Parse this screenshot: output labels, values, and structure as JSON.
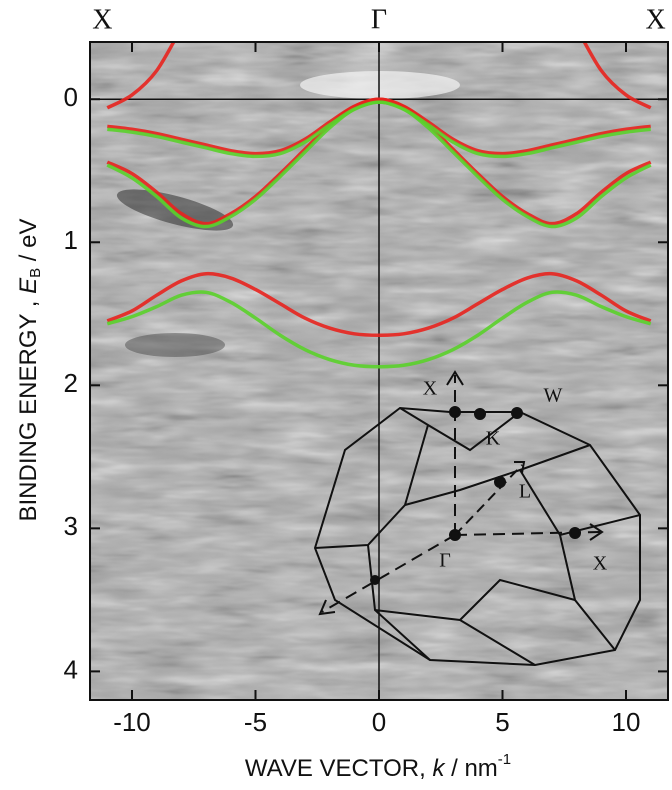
{
  "chart_data": {
    "type": "line",
    "x_label_parts": [
      "WAVE VECTOR, ",
      "k",
      " / nm",
      "-1"
    ],
    "y_label_parts": [
      "BINDING ENERGY , ",
      "E",
      "B",
      " / eV"
    ],
    "top_labels": [
      {
        "label": "X",
        "x": -11.2
      },
      {
        "label": "Γ",
        "x": 0
      },
      {
        "label": "X",
        "x": 11.2
      }
    ],
    "x": [
      -11,
      -10,
      -9,
      -8,
      -7,
      -6,
      -5,
      -4,
      -3,
      -2,
      -1,
      0,
      1,
      2,
      3,
      4,
      5,
      6,
      7,
      8,
      9,
      10,
      11
    ],
    "series": [
      {
        "color": "#e8231e",
        "values": [
          0.44,
          0.52,
          0.65,
          0.8,
          0.87,
          0.8,
          0.68,
          0.52,
          0.35,
          0.18,
          0.05,
          0.0,
          0.05,
          0.18,
          0.35,
          0.52,
          0.68,
          0.8,
          0.87,
          0.8,
          0.65,
          0.52,
          0.44
        ]
      },
      {
        "color": "#5ad12a",
        "values": [
          0.46,
          0.55,
          0.68,
          0.83,
          0.89,
          0.82,
          0.7,
          0.54,
          0.37,
          0.2,
          0.07,
          0.02,
          0.07,
          0.2,
          0.37,
          0.54,
          0.7,
          0.82,
          0.89,
          0.83,
          0.68,
          0.55,
          0.46
        ]
      },
      {
        "color": "#e8231e",
        "values": [
          0.19,
          0.21,
          0.24,
          0.28,
          0.32,
          0.36,
          0.38,
          0.36,
          0.28,
          0.16,
          0.05,
          0.0,
          0.05,
          0.16,
          0.28,
          0.36,
          0.38,
          0.36,
          0.32,
          0.28,
          0.24,
          0.21,
          0.19
        ]
      },
      {
        "color": "#5ad12a",
        "values": [
          0.21,
          0.23,
          0.26,
          0.3,
          0.34,
          0.38,
          0.4,
          0.38,
          0.3,
          0.18,
          0.07,
          0.02,
          0.07,
          0.18,
          0.3,
          0.38,
          0.4,
          0.38,
          0.34,
          0.3,
          0.26,
          0.23,
          0.21
        ]
      },
      {
        "color": "#e8231e",
        "values": [
          1.55,
          1.48,
          1.37,
          1.27,
          1.22,
          1.25,
          1.33,
          1.43,
          1.53,
          1.6,
          1.64,
          1.65,
          1.64,
          1.6,
          1.53,
          1.43,
          1.33,
          1.25,
          1.22,
          1.27,
          1.37,
          1.48,
          1.55
        ]
      },
      {
        "color": "#5ad12a",
        "values": [
          1.57,
          1.52,
          1.45,
          1.37,
          1.35,
          1.42,
          1.53,
          1.65,
          1.75,
          1.82,
          1.86,
          1.87,
          1.86,
          1.82,
          1.75,
          1.65,
          1.53,
          1.42,
          1.35,
          1.37,
          1.45,
          1.52,
          1.57
        ]
      },
      {
        "color": "#e8231e",
        "values": [
          0.06,
          -0.03,
          -0.2,
          -0.5,
          null,
          null,
          null,
          null,
          null,
          null,
          null,
          null,
          null,
          null,
          null,
          null,
          null,
          null,
          null,
          -0.5,
          -0.2,
          -0.03,
          0.06
        ]
      }
    ],
    "xlim": [
      -11.7,
      11.7
    ],
    "ylim": [
      -0.4,
      4.2
    ],
    "y_inverted": true,
    "xticks": [
      -10,
      -5,
      0,
      5,
      10
    ],
    "yticks": [
      0,
      1,
      2,
      3,
      4
    ],
    "hlines": [
      0
    ],
    "vlines": [
      0
    ],
    "inset": {
      "labels": [
        "X",
        "W",
        "K",
        "L",
        "Γ",
        "X"
      ]
    }
  }
}
